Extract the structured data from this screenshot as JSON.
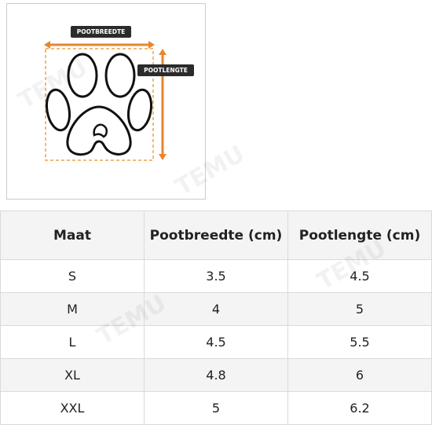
{
  "diagram": {
    "width_label": "POOTBREEDTE",
    "length_label": "POOTLENGTE"
  },
  "watermark": "TEMU",
  "table": {
    "header": [
      "Maat",
      "Pootbreedte (cm)",
      "Pootlengte (cm)"
    ],
    "rows": [
      [
        "S",
        "3.5",
        "4.5"
      ],
      [
        "M",
        "4",
        "5"
      ],
      [
        "L",
        "4.5",
        "5.5"
      ],
      [
        "XL",
        "4.8",
        "6"
      ],
      [
        "XXL",
        "5",
        "6.2"
      ]
    ]
  }
}
